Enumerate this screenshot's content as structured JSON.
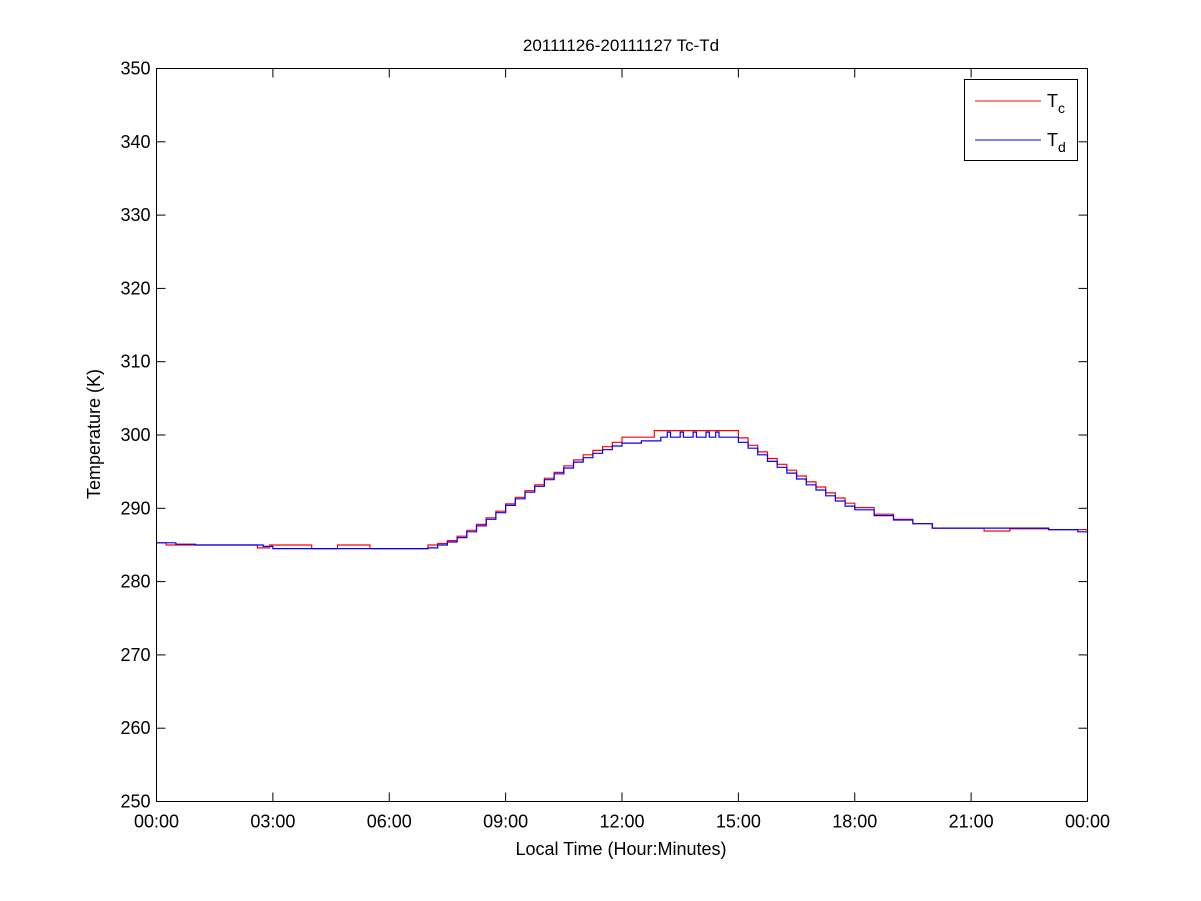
{
  "chart_data": {
    "type": "line",
    "title": "20111126-20111127 Tc-Td",
    "xlabel": "Local Time (Hour:Minutes)",
    "ylabel": "Temperature (K)",
    "xlim": [
      "00:00",
      "24:00"
    ],
    "ylim": [
      250,
      350
    ],
    "x_tick_labels": [
      "00:00",
      "03:00",
      "06:00",
      "09:00",
      "12:00",
      "15:00",
      "18:00",
      "21:00",
      "00:00"
    ],
    "y_ticks": [
      250,
      260,
      270,
      280,
      290,
      300,
      310,
      320,
      330,
      340,
      350
    ],
    "grid": false,
    "legend_position": "top-right",
    "interpolation": "step",
    "series": [
      {
        "name": "Tc",
        "legend_base": "T",
        "legend_sub": "c",
        "color": "#ff0000",
        "points": [
          [
            "00:00",
            285.3
          ],
          [
            "00:15",
            285.0
          ],
          [
            "02:36",
            284.6
          ],
          [
            "02:55",
            285.0
          ],
          [
            "04:00",
            284.5
          ],
          [
            "04:40",
            285.0
          ],
          [
            "05:30",
            284.5
          ],
          [
            "07:00",
            285.0
          ],
          [
            "07:15",
            285.2
          ],
          [
            "07:30",
            285.6
          ],
          [
            "07:45",
            286.2
          ],
          [
            "08:00",
            287.0
          ],
          [
            "08:15",
            287.8
          ],
          [
            "08:30",
            288.7
          ],
          [
            "08:45",
            289.6
          ],
          [
            "09:00",
            290.6
          ],
          [
            "09:15",
            291.5
          ],
          [
            "09:30",
            292.4
          ],
          [
            "09:45",
            293.2
          ],
          [
            "10:00",
            294.1
          ],
          [
            "10:15",
            294.9
          ],
          [
            "10:30",
            295.8
          ],
          [
            "10:45",
            296.6
          ],
          [
            "11:00",
            297.3
          ],
          [
            "11:15",
            297.9
          ],
          [
            "11:30",
            298.4
          ],
          [
            "11:45",
            299.0
          ],
          [
            "12:00",
            299.7
          ],
          [
            "12:50",
            300.6
          ],
          [
            "14:55",
            300.6
          ],
          [
            "15:00",
            299.6
          ],
          [
            "15:15",
            298.6
          ],
          [
            "15:30",
            297.7
          ],
          [
            "15:45",
            296.8
          ],
          [
            "16:00",
            296.0
          ],
          [
            "16:15",
            295.2
          ],
          [
            "16:30",
            294.4
          ],
          [
            "16:45",
            293.6
          ],
          [
            "17:00",
            292.9
          ],
          [
            "17:15",
            292.1
          ],
          [
            "17:30",
            291.4
          ],
          [
            "17:45",
            290.7
          ],
          [
            "18:00",
            290.1
          ],
          [
            "18:30",
            289.2
          ],
          [
            "19:00",
            288.5
          ],
          [
            "19:30",
            287.9
          ],
          [
            "20:00",
            287.3
          ],
          [
            "21:20",
            286.9
          ],
          [
            "22:00",
            287.2
          ],
          [
            "23:00",
            287.1
          ],
          [
            "24:00",
            286.9
          ]
        ]
      },
      {
        "name": "Td",
        "legend_base": "T",
        "legend_sub": "d",
        "color": "#0000ff",
        "points": [
          [
            "00:00",
            285.3
          ],
          [
            "00:30",
            285.1
          ],
          [
            "01:00",
            285.0
          ],
          [
            "02:45",
            284.8
          ],
          [
            "03:00",
            284.5
          ],
          [
            "07:00",
            284.6
          ],
          [
            "07:15",
            285.0
          ],
          [
            "07:30",
            285.4
          ],
          [
            "07:45",
            286.0
          ],
          [
            "08:00",
            286.8
          ],
          [
            "08:15",
            287.6
          ],
          [
            "08:30",
            288.5
          ],
          [
            "08:45",
            289.4
          ],
          [
            "09:00",
            290.4
          ],
          [
            "09:15",
            291.3
          ],
          [
            "09:30",
            292.2
          ],
          [
            "09:45",
            293.0
          ],
          [
            "10:00",
            293.9
          ],
          [
            "10:15",
            294.7
          ],
          [
            "10:30",
            295.5
          ],
          [
            "10:45",
            296.3
          ],
          [
            "11:00",
            296.9
          ],
          [
            "11:15",
            297.5
          ],
          [
            "11:30",
            298.0
          ],
          [
            "11:45",
            298.5
          ],
          [
            "12:00",
            298.9
          ],
          [
            "12:30",
            299.2
          ],
          [
            "13:00",
            299.7
          ],
          [
            "13:10",
            300.4
          ],
          [
            "13:15",
            299.7
          ],
          [
            "13:30",
            300.4
          ],
          [
            "13:35",
            299.7
          ],
          [
            "13:50",
            300.4
          ],
          [
            "13:55",
            299.7
          ],
          [
            "14:10",
            300.4
          ],
          [
            "14:15",
            299.7
          ],
          [
            "14:25",
            300.4
          ],
          [
            "14:30",
            299.7
          ],
          [
            "14:45",
            299.7
          ],
          [
            "15:00",
            299.0
          ],
          [
            "15:15",
            298.2
          ],
          [
            "15:30",
            297.3
          ],
          [
            "15:45",
            296.4
          ],
          [
            "16:00",
            295.6
          ],
          [
            "16:15",
            294.8
          ],
          [
            "16:30",
            294.0
          ],
          [
            "16:45",
            293.2
          ],
          [
            "17:00",
            292.5
          ],
          [
            "17:15",
            291.7
          ],
          [
            "17:30",
            291.0
          ],
          [
            "17:45",
            290.3
          ],
          [
            "18:00",
            289.8
          ],
          [
            "18:30",
            289.0
          ],
          [
            "19:00",
            288.4
          ],
          [
            "19:30",
            287.9
          ],
          [
            "20:00",
            287.3
          ],
          [
            "23:00",
            287.1
          ],
          [
            "23:45",
            286.8
          ],
          [
            "24:00",
            286.6
          ]
        ]
      }
    ]
  }
}
